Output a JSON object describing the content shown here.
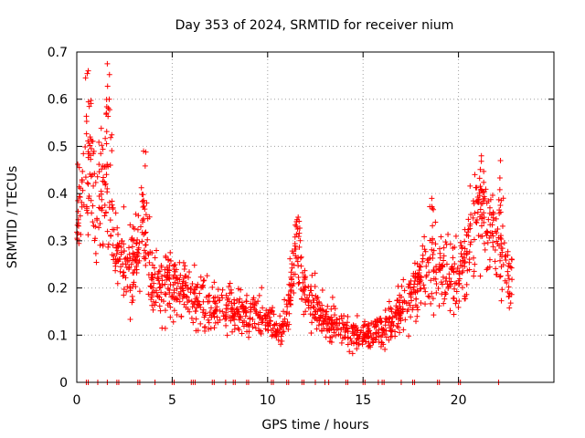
{
  "chart_data": {
    "type": "scatter",
    "title": "Day 353 of 2024, SRMTID for receiver nium",
    "xlabel": "GPS time / hours",
    "ylabel": "SRMTID / TECUs",
    "xlim": [
      0,
      25
    ],
    "ylim": [
      0,
      0.7
    ],
    "xticks": [
      0,
      5,
      10,
      15,
      20
    ],
    "xtick_labels": [
      "0",
      "5",
      "10",
      "15",
      "20"
    ],
    "yticks": [
      0,
      0.1,
      0.2,
      0.3,
      0.4,
      0.5,
      0.6,
      0.7
    ],
    "ytick_labels": [
      "0",
      "0.1",
      "0.2",
      "0.3",
      "0.4",
      "0.5",
      "0.6",
      "0.7"
    ],
    "grid": true,
    "marker": "+",
    "color": "#ff0000",
    "series": [
      {
        "name": "SRMTID",
        "x_range": [
          0,
          22.8
        ],
        "profile": [
          {
            "x": 0.0,
            "y": 0.36
          },
          {
            "x": 0.5,
            "y": 0.45
          },
          {
            "x": 1.0,
            "y": 0.38
          },
          {
            "x": 1.5,
            "y": 0.42
          },
          {
            "x": 2.0,
            "y": 0.27
          },
          {
            "x": 2.5,
            "y": 0.26
          },
          {
            "x": 3.0,
            "y": 0.26
          },
          {
            "x": 3.5,
            "y": 0.33
          },
          {
            "x": 4.0,
            "y": 0.2
          },
          {
            "x": 5.0,
            "y": 0.22
          },
          {
            "x": 6.0,
            "y": 0.19
          },
          {
            "x": 7.0,
            "y": 0.16
          },
          {
            "x": 8.0,
            "y": 0.15
          },
          {
            "x": 9.0,
            "y": 0.15
          },
          {
            "x": 10.0,
            "y": 0.13
          },
          {
            "x": 10.5,
            "y": 0.1
          },
          {
            "x": 11.0,
            "y": 0.14
          },
          {
            "x": 11.5,
            "y": 0.28
          },
          {
            "x": 12.0,
            "y": 0.19
          },
          {
            "x": 13.0,
            "y": 0.13
          },
          {
            "x": 14.0,
            "y": 0.11
          },
          {
            "x": 15.0,
            "y": 0.1
          },
          {
            "x": 16.0,
            "y": 0.11
          },
          {
            "x": 17.0,
            "y": 0.15
          },
          {
            "x": 18.0,
            "y": 0.22
          },
          {
            "x": 19.0,
            "y": 0.24
          },
          {
            "x": 20.0,
            "y": 0.22
          },
          {
            "x": 20.5,
            "y": 0.28
          },
          {
            "x": 21.0,
            "y": 0.38
          },
          {
            "x": 21.5,
            "y": 0.33
          },
          {
            "x": 22.0,
            "y": 0.3
          },
          {
            "x": 22.5,
            "y": 0.22
          },
          {
            "x": 22.8,
            "y": 0.21
          }
        ],
        "peaks": [
          {
            "x": 0.6,
            "y": 0.66
          },
          {
            "x": 1.6,
            "y": 0.675
          },
          {
            "x": 1.7,
            "y": 0.6
          },
          {
            "x": 0.7,
            "y": 0.52
          },
          {
            "x": 3.5,
            "y": 0.49
          },
          {
            "x": 11.6,
            "y": 0.35
          },
          {
            "x": 21.2,
            "y": 0.48
          },
          {
            "x": 22.2,
            "y": 0.47
          },
          {
            "x": 18.6,
            "y": 0.39
          }
        ],
        "zero_values_x": [
          0.5,
          0.6,
          1.1,
          1.6,
          2.1,
          2.2,
          3.2,
          3.3,
          4.1,
          5.0,
          5.1,
          6.0,
          6.1,
          6.2,
          7.1,
          7.2,
          7.8,
          8.2,
          8.3,
          8.9,
          9.0,
          10.2,
          10.3,
          11.0,
          11.1,
          11.8,
          11.9,
          12.5,
          13.0,
          13.2,
          14.1,
          14.2,
          15.0,
          15.1,
          15.8,
          16.0,
          16.1,
          17.0,
          17.6,
          17.7,
          18.9,
          19.0,
          20.0,
          20.1,
          22.1
        ]
      }
    ]
  }
}
